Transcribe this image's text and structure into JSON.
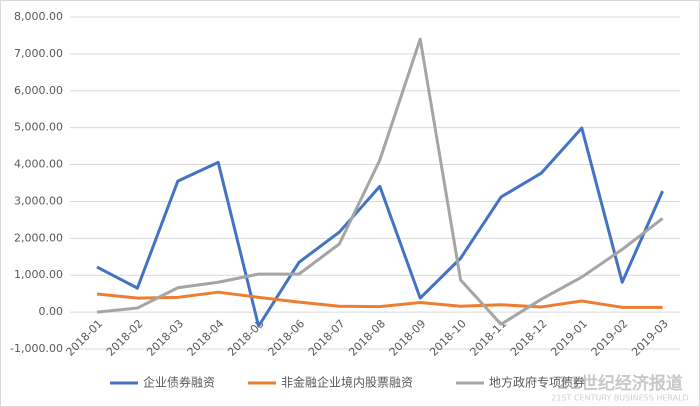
{
  "chart_data": {
    "type": "line",
    "categories": [
      "2018-01",
      "2018-02",
      "2018-03",
      "2018-04",
      "2018-05",
      "2018-06",
      "2018-07",
      "2018-08",
      "2018-09",
      "2018-10",
      "2018-11",
      "2018-12",
      "2019-01",
      "2019-02",
      "2019-03"
    ],
    "series": [
      {
        "name": "企业债券融资",
        "color": "#4472c4",
        "values": [
          1220,
          650,
          3550,
          4060,
          -380,
          1350,
          2170,
          3410,
          380,
          1460,
          3120,
          3770,
          4990,
          810,
          3280
        ]
      },
      {
        "name": "非金融企业境内股票融资",
        "color": "#ed7d31",
        "values": [
          490,
          380,
          400,
          540,
          400,
          270,
          160,
          150,
          260,
          160,
          200,
          140,
          300,
          130,
          130
        ]
      },
      {
        "name": "地方政府专项债券",
        "color": "#a5a5a5",
        "values": [
          0,
          110,
          660,
          810,
          1030,
          1030,
          1850,
          4120,
          7400,
          870,
          -330,
          350,
          950,
          1700,
          2540
        ]
      }
    ],
    "ylim": [
      -1000,
      8000
    ],
    "yticks": [
      {
        "value": -1000,
        "label": "-1,000.00"
      },
      {
        "value": 0,
        "label": "0.00"
      },
      {
        "value": 1000,
        "label": "1,000.00"
      },
      {
        "value": 2000,
        "label": "2,000.00"
      },
      {
        "value": 3000,
        "label": "3,000.00"
      },
      {
        "value": 4000,
        "label": "4,000.00"
      },
      {
        "value": 5000,
        "label": "5,000.00"
      },
      {
        "value": 6000,
        "label": "6,000.00"
      },
      {
        "value": 7000,
        "label": "7,000.00"
      },
      {
        "value": 8000,
        "label": "8,000.00"
      }
    ],
    "grid": true,
    "legend": "bottom"
  },
  "watermark": {
    "title": "21世纪经济报道",
    "subtitle": "21ST CENTURY BUSINESS HERALD"
  }
}
